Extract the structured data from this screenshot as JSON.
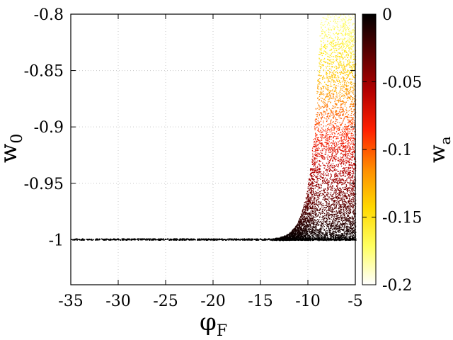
{
  "chart_data": {
    "type": "scatter",
    "title": "",
    "xlabel": {
      "main": "φ",
      "sub": "F"
    },
    "ylabel": {
      "main": "w",
      "sub": "0"
    },
    "colorbar_label": {
      "main": "w",
      "sub": "a"
    },
    "xlim": [
      -35,
      -5
    ],
    "ylim": [
      -1.04,
      -0.8
    ],
    "grid": true,
    "x_ticks": [
      -35,
      -30,
      -25,
      -20,
      -15,
      -10,
      -5
    ],
    "x_tick_labels": [
      "-35",
      "-30",
      "-25",
      "-20",
      "-15",
      "-10",
      "-5"
    ],
    "y_ticks": [
      -1.0,
      -0.95,
      -0.9,
      -0.85,
      -0.8
    ],
    "y_tick_labels": [
      "-1",
      "-0.95",
      "-0.9",
      "-0.85",
      "-0.8"
    ],
    "colorbar": {
      "range": [
        -0.2,
        0
      ],
      "ticks": [
        0,
        -0.05,
        -0.1,
        -0.15,
        -0.2
      ],
      "tick_labels": [
        "0",
        "-0.05",
        "-0.1",
        "-0.15",
        "-0.2"
      ],
      "colormap": [
        "#000000",
        "#5a0000",
        "#b40000",
        "#ff2000",
        "#ff8c00",
        "#ffd800",
        "#ffff60",
        "#ffffff"
      ]
    },
    "series": [
      {
        "description_points": [
          {
            "x": -35,
            "y": -1.0,
            "w_a": 0
          },
          {
            "x": -15,
            "y": -1.0,
            "w_a": 0
          },
          {
            "x": -12.5,
            "y": -0.995,
            "w_a": -0.01
          },
          {
            "x": -11,
            "y": -0.98,
            "w_a": -0.03
          },
          {
            "x": -10,
            "y": -0.95,
            "w_a": -0.07
          },
          {
            "x": -9.5,
            "y": -0.92,
            "w_a": -0.09
          },
          {
            "x": -9,
            "y": -0.87,
            "w_a": -0.12
          },
          {
            "x": -8.7,
            "y": -0.8,
            "w_a": -0.16
          },
          {
            "x": -5,
            "y": -1.0,
            "w_a": -0.01
          },
          {
            "x": -5,
            "y": -0.8,
            "w_a": -0.17
          }
        ]
      }
    ]
  }
}
